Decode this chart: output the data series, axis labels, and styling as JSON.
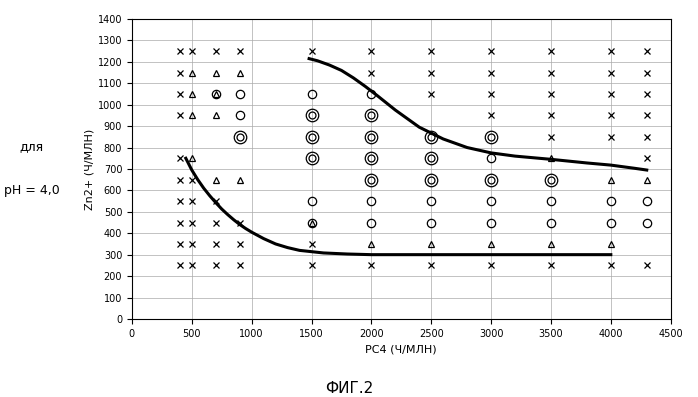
{
  "title": "ФИГ.2",
  "xlabel": "РС4 (Ч/МЛН)",
  "ylabel": "Zn2+ (Ч/МЛН)",
  "left_text_line1": "для",
  "left_text_line2": "рН = 4,0",
  "xlim": [
    0,
    4500
  ],
  "ylim": [
    0,
    1400
  ],
  "xticks": [
    0,
    500,
    1000,
    1500,
    2000,
    2500,
    3000,
    3500,
    4000,
    4500
  ],
  "yticks": [
    0,
    100,
    200,
    300,
    400,
    500,
    600,
    700,
    800,
    900,
    1000,
    1100,
    1200,
    1300,
    1400
  ],
  "curve1_x": [
    450,
    500,
    550,
    600,
    650,
    700,
    750,
    800,
    850,
    900,
    950,
    1000,
    1100,
    1200,
    1300,
    1400,
    1600,
    1800,
    2000,
    2200,
    2500,
    3000,
    4000
  ],
  "curve1_y": [
    750,
    695,
    650,
    610,
    575,
    543,
    513,
    487,
    463,
    441,
    422,
    405,
    375,
    350,
    333,
    320,
    308,
    303,
    300,
    300,
    300,
    300,
    300
  ],
  "curve2_x": [
    1480,
    1550,
    1650,
    1750,
    1850,
    1950,
    2050,
    2200,
    2400,
    2600,
    2800,
    3000,
    3200,
    3500,
    3800,
    4000,
    4200,
    4300
  ],
  "curve2_y": [
    1215,
    1205,
    1185,
    1160,
    1125,
    1085,
    1042,
    975,
    895,
    840,
    800,
    775,
    760,
    745,
    728,
    718,
    703,
    695
  ],
  "cross_points": [
    [
      400,
      1250
    ],
    [
      400,
      1150
    ],
    [
      400,
      1050
    ],
    [
      400,
      950
    ],
    [
      400,
      750
    ],
    [
      400,
      650
    ],
    [
      400,
      550
    ],
    [
      400,
      450
    ],
    [
      400,
      350
    ],
    [
      400,
      250
    ],
    [
      500,
      1250
    ],
    [
      500,
      650
    ],
    [
      500,
      550
    ],
    [
      500,
      450
    ],
    [
      500,
      350
    ],
    [
      500,
      250
    ],
    [
      700,
      1250
    ],
    [
      700,
      550
    ],
    [
      700,
      450
    ],
    [
      700,
      350
    ],
    [
      700,
      250
    ],
    [
      900,
      1250
    ],
    [
      900,
      450
    ],
    [
      900,
      350
    ],
    [
      900,
      250
    ],
    [
      1500,
      1250
    ],
    [
      1500,
      350
    ],
    [
      1500,
      250
    ],
    [
      2000,
      1250
    ],
    [
      2000,
      1150
    ],
    [
      2000,
      250
    ],
    [
      2500,
      1250
    ],
    [
      2500,
      1150
    ],
    [
      2500,
      1050
    ],
    [
      2500,
      250
    ],
    [
      3000,
      1250
    ],
    [
      3000,
      1150
    ],
    [
      3000,
      1050
    ],
    [
      3000,
      950
    ],
    [
      3000,
      250
    ],
    [
      3500,
      1250
    ],
    [
      3500,
      1150
    ],
    [
      3500,
      1050
    ],
    [
      3500,
      950
    ],
    [
      3500,
      850
    ],
    [
      3500,
      250
    ],
    [
      4000,
      1250
    ],
    [
      4000,
      1150
    ],
    [
      4000,
      1050
    ],
    [
      4000,
      950
    ],
    [
      4000,
      850
    ],
    [
      4000,
      250
    ],
    [
      4300,
      1250
    ],
    [
      4300,
      1150
    ],
    [
      4300,
      1050
    ],
    [
      4300,
      950
    ],
    [
      4300,
      850
    ],
    [
      4300,
      750
    ],
    [
      4300,
      250
    ]
  ],
  "triangle_points": [
    [
      500,
      1150
    ],
    [
      700,
      1150
    ],
    [
      900,
      1150
    ],
    [
      500,
      1050
    ],
    [
      700,
      1050
    ],
    [
      500,
      950
    ],
    [
      700,
      950
    ],
    [
      500,
      750
    ],
    [
      700,
      650
    ],
    [
      900,
      650
    ],
    [
      1500,
      450
    ],
    [
      2000,
      350
    ],
    [
      2500,
      350
    ],
    [
      3000,
      350
    ],
    [
      3500,
      350
    ],
    [
      3500,
      750
    ],
    [
      4000,
      350
    ],
    [
      4000,
      650
    ],
    [
      4300,
      650
    ]
  ],
  "circle_points": [
    [
      700,
      1050
    ],
    [
      900,
      1050
    ],
    [
      900,
      950
    ],
    [
      1500,
      1050
    ],
    [
      1500,
      550
    ],
    [
      1500,
      450
    ],
    [
      2000,
      1050
    ],
    [
      2000,
      550
    ],
    [
      2000,
      450
    ],
    [
      2500,
      550
    ],
    [
      2500,
      450
    ],
    [
      3000,
      550
    ],
    [
      3000,
      450
    ],
    [
      3000,
      750
    ],
    [
      3500,
      550
    ],
    [
      3500,
      450
    ],
    [
      4000,
      550
    ],
    [
      4000,
      450
    ],
    [
      4300,
      550
    ],
    [
      4300,
      450
    ]
  ],
  "double_circle_points": [
    [
      900,
      850
    ],
    [
      1500,
      850
    ],
    [
      1500,
      750
    ],
    [
      1500,
      950
    ],
    [
      2000,
      850
    ],
    [
      2000,
      750
    ],
    [
      2000,
      650
    ],
    [
      2000,
      950
    ],
    [
      2500,
      850
    ],
    [
      2500,
      750
    ],
    [
      2500,
      650
    ],
    [
      3000,
      850
    ],
    [
      3000,
      650
    ],
    [
      3500,
      650
    ]
  ],
  "background_color": "#ffffff",
  "curve_color": "#000000",
  "curve_linewidth": 2.2
}
